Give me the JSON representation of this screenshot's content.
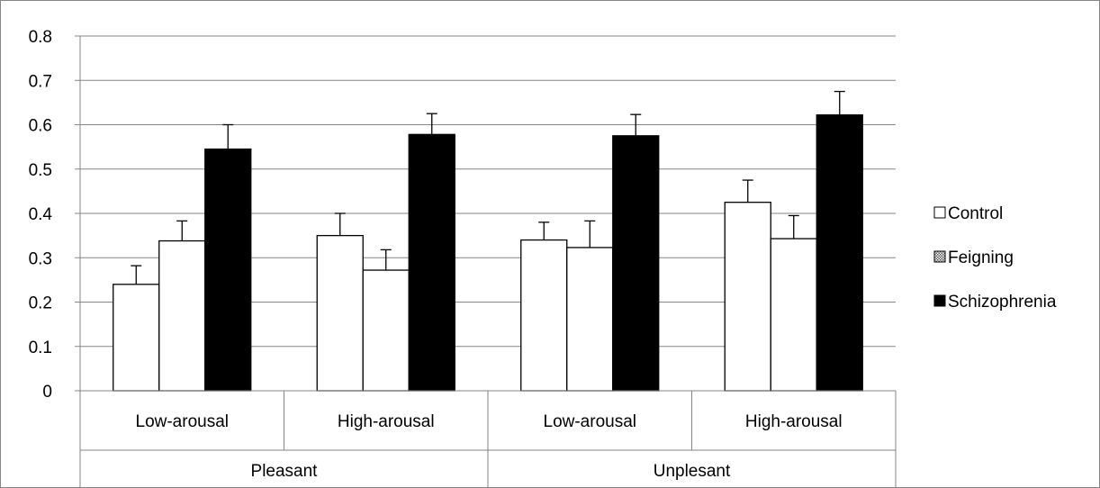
{
  "chart_data": {
    "type": "bar",
    "title": "",
    "xlabel": "",
    "ylabel": "",
    "ylim": [
      0,
      0.8
    ],
    "yticks": [
      "0",
      "0.1",
      "0.2",
      "0.3",
      "0.4",
      "0.5",
      "0.6",
      "0.7",
      "0.8"
    ],
    "grid": true,
    "legend_position": "right",
    "groups": [
      {
        "label": "Pleasant",
        "categories": [
          "Low-arousal",
          "High-arousal"
        ]
      },
      {
        "label": "Unplesant",
        "categories": [
          "Low-arousal",
          "High-arousal"
        ]
      }
    ],
    "categories": [
      "Low-arousal",
      "High-arousal",
      "Low-arousal",
      "High-arousal"
    ],
    "series": [
      {
        "name": "Control",
        "values": [
          0.24,
          0.35,
          0.34,
          0.425
        ],
        "errors": [
          0.042,
          0.05,
          0.04,
          0.05
        ],
        "fill": "#ffffff",
        "pattern": "none"
      },
      {
        "name": "Feigning",
        "values": [
          0.338,
          0.272,
          0.323,
          0.343
        ],
        "errors": [
          0.045,
          0.046,
          0.06,
          0.052
        ],
        "fill": "#ffffff",
        "pattern": "none"
      },
      {
        "name": "Schizophrenia",
        "values": [
          0.545,
          0.578,
          0.575,
          0.622
        ],
        "errors": [
          0.055,
          0.047,
          0.048,
          0.053
        ],
        "fill": "#000000",
        "pattern": "none"
      }
    ],
    "legend": [
      {
        "name": "Control",
        "swatch": "white"
      },
      {
        "name": "Feigning",
        "swatch": "checker"
      },
      {
        "name": "Schizophrenia",
        "swatch": "black"
      }
    ]
  }
}
